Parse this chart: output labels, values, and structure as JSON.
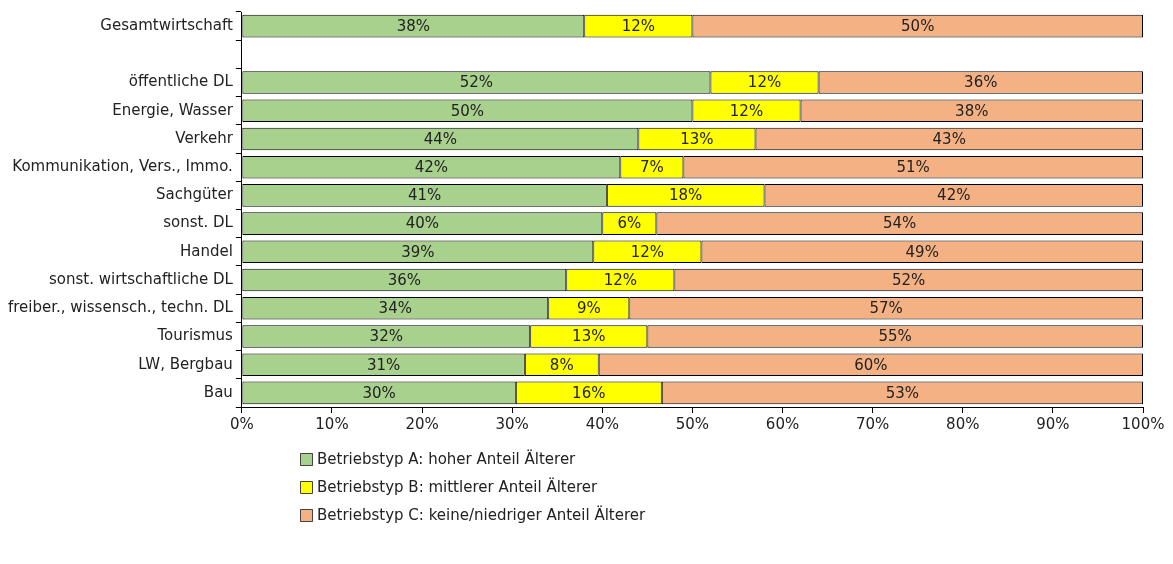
{
  "chart_data": {
    "type": "bar",
    "orientation": "horizontal",
    "stacked": true,
    "legend": "bottom left",
    "grid": false,
    "categories": [
      "Gesamtwirtschaft",
      null,
      "öffentliche DL",
      "Energie, Wasser",
      "Verkehr",
      "Kommunikation, Vers., Immo.",
      "Sachgüter",
      "sonst. DL",
      "Handel",
      "sonst. wirtschaftliche DL",
      "freiber., wissensch., techn. DL",
      "Tourismus",
      "LW, Bergbau",
      "Bau"
    ],
    "xlim": [
      0,
      100
    ],
    "xticks": [
      {
        "value": 0,
        "label": "0%"
      },
      {
        "value": 10,
        "label": "10%"
      },
      {
        "value": 20,
        "label": "20%"
      },
      {
        "value": 30,
        "label": "30%"
      },
      {
        "value": 40,
        "label": "40%"
      },
      {
        "value": 50,
        "label": "50%"
      },
      {
        "value": 60,
        "label": "60%"
      },
      {
        "value": 70,
        "label": "70%"
      },
      {
        "value": 80,
        "label": "80%"
      },
      {
        "value": 90,
        "label": "90%"
      },
      {
        "value": 100,
        "label": "100%"
      }
    ],
    "series": [
      {
        "name": "Betriebstyp A: hoher Anteil Älterer",
        "color": "#a9d18e",
        "values": [
          38,
          null,
          52,
          50,
          44,
          42,
          40.5,
          40,
          39,
          36,
          34,
          32,
          31.4,
          30.4
        ],
        "value_labels": [
          "38%",
          null,
          "52%",
          "50%",
          "44%",
          "42%",
          "41%",
          "40%",
          "39%",
          "36%",
          "34%",
          "32%",
          "31%",
          "30%"
        ]
      },
      {
        "name": "Betriebstyp B: mittlerer Anteil Älterer",
        "color": "#ffff00",
        "values": [
          12,
          null,
          12,
          12,
          13,
          7,
          17.5,
          6,
          12,
          12,
          9,
          13,
          8.2,
          16.2
        ],
        "value_labels": [
          "12%",
          null,
          "12%",
          "12%",
          "13%",
          "7%",
          "18%",
          "6%",
          "12%",
          "12%",
          "9%",
          "13%",
          "8%",
          "16%"
        ]
      },
      {
        "name": "Betriebstyp C: keine/niedriger Anteil Älterer",
        "color": "#f4b183",
        "values": [
          50,
          null,
          36,
          38,
          43,
          51,
          42,
          54,
          49,
          52,
          57,
          55,
          60.4,
          53.4
        ],
        "value_labels": [
          "50%",
          null,
          "36%",
          "38%",
          "43%",
          "51%",
          "42%",
          "54%",
          "49%",
          "52%",
          "57%",
          "55%",
          "60%",
          "53%"
        ]
      }
    ]
  }
}
